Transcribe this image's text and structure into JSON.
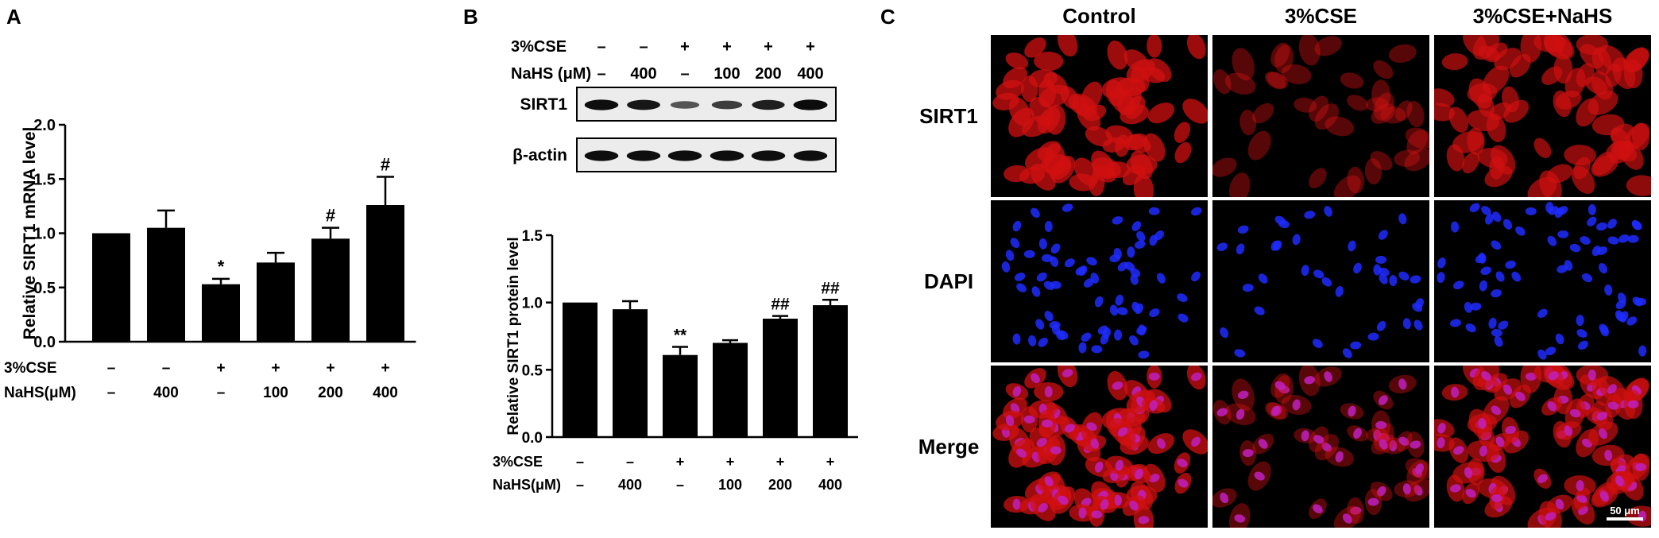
{
  "panels": {
    "A": "A",
    "B": "B",
    "C": "C"
  },
  "chart_data": [
    {
      "type": "bar",
      "panel": "A",
      "ylabel": "Relative SIRT1 mRNA level",
      "ylim": [
        0,
        2.0
      ],
      "yticks": [
        "0.0",
        "0.5",
        "1.0",
        "1.5",
        "2.0"
      ],
      "ytick_values": [
        0,
        0.5,
        1.0,
        1.5,
        2.0
      ],
      "values": [
        1.0,
        1.05,
        0.53,
        0.73,
        0.95,
        1.26
      ],
      "errors": [
        0.0,
        0.16,
        0.05,
        0.09,
        0.1,
        0.26
      ],
      "annotations": [
        "",
        "",
        "*",
        "",
        "#",
        "#"
      ],
      "rows": [
        {
          "label": "3%CSE",
          "values": [
            "–",
            "–",
            "+",
            "+",
            "+",
            "+"
          ]
        },
        {
          "label": "NaHS(μM)",
          "values": [
            "–",
            "400",
            "–",
            "100",
            "200",
            "400"
          ]
        }
      ],
      "bar_color": "#000000"
    },
    {
      "type": "bar",
      "panel": "B",
      "ylabel": "Relative SIRT1 protein level",
      "ylim": [
        0,
        1.5
      ],
      "yticks": [
        "0.0",
        "0.5",
        "1.0",
        "1.5"
      ],
      "ytick_values": [
        0,
        0.5,
        1.0,
        1.5
      ],
      "values": [
        1.0,
        0.95,
        0.61,
        0.7,
        0.88,
        0.98
      ],
      "errors": [
        0.0,
        0.06,
        0.06,
        0.02,
        0.02,
        0.04
      ],
      "annotations": [
        "",
        "",
        "**",
        "",
        "##",
        "##"
      ],
      "rows": [
        {
          "label": "3%CSE",
          "values": [
            "–",
            "–",
            "+",
            "+",
            "+",
            "+"
          ]
        },
        {
          "label": "NaHS(μM)",
          "values": [
            "–",
            "400",
            "–",
            "100",
            "200",
            "400"
          ]
        }
      ],
      "bar_color": "#000000"
    }
  ],
  "blot": {
    "rows": [
      {
        "label": "3%CSE",
        "values": [
          "–",
          "–",
          "+",
          "+",
          "+",
          "+"
        ]
      },
      {
        "label": "NaHS (μM)",
        "values": [
          "–",
          "400",
          "–",
          "100",
          "200",
          "400"
        ]
      }
    ],
    "bands": [
      {
        "label": "SIRT1",
        "intensity": [
          0.9,
          0.85,
          0.45,
          0.6,
          0.8,
          0.92
        ]
      },
      {
        "label": "β-actin",
        "intensity": [
          0.9,
          0.9,
          0.9,
          0.9,
          0.9,
          0.9
        ]
      }
    ]
  },
  "micrographs": {
    "columns": [
      "Control",
      "3%CSE",
      "3%CSE+NaHS"
    ],
    "rows": [
      "SIRT1",
      "DAPI",
      "Merge"
    ],
    "scale_bar": "50 μm",
    "colors": {
      "sirt1": "#d01010",
      "dapi": "#1e2cff",
      "merge": "#c020c0"
    },
    "density": [
      {
        "sirt1": 1.0,
        "dapi": 1.0
      },
      {
        "sirt1": 0.35,
        "dapi": 0.55
      },
      {
        "sirt1": 0.85,
        "dapi": 1.0
      }
    ]
  }
}
